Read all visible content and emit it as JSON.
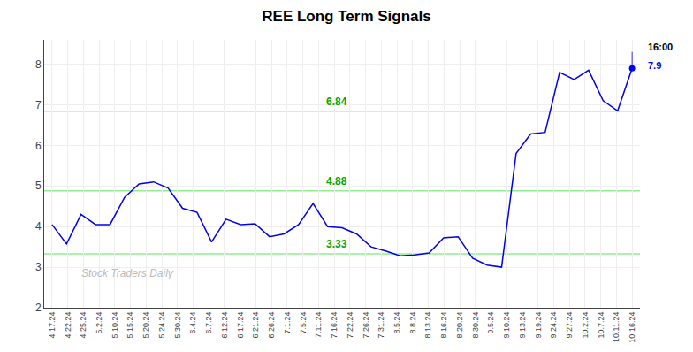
{
  "chart_data": {
    "type": "line",
    "title": "REE Long Term Signals",
    "x": [
      0,
      0.925,
      1.85,
      2.775,
      3.7,
      4.625,
      5.55,
      6.475,
      7.4,
      8.325,
      9.25,
      10.175,
      11.1,
      12.025,
      12.95,
      13.875,
      14.8,
      15.725,
      16.65,
      17.575,
      18.5,
      19.425,
      20.35,
      21.275,
      22.2,
      23.125,
      24.05,
      24.975,
      25.9,
      26.825,
      27.75,
      28.675,
      29.6,
      30.525,
      31.45,
      32.375,
      33.3,
      34.225,
      35.15,
      36.075,
      37
    ],
    "values": [
      4.05,
      3.57,
      4.3,
      4.05,
      4.05,
      4.72,
      5.05,
      5.1,
      4.95,
      4.45,
      4.35,
      3.62,
      4.18,
      4.05,
      4.07,
      3.75,
      3.82,
      4.05,
      4.57,
      4.0,
      3.97,
      3.82,
      3.5,
      3.4,
      3.28,
      3.3,
      3.35,
      3.72,
      3.75,
      3.22,
      3.05,
      3.0,
      5.8,
      6.28,
      6.32,
      7.8,
      7.62,
      7.85,
      7.1,
      6.85,
      7.9
    ],
    "color": "#0000EE",
    "xlim": [
      -0.5,
      37.5
    ],
    "xticks": [
      {
        "value": 0,
        "label": "4.17.24"
      },
      {
        "value": 1,
        "label": "4.22.24"
      },
      {
        "value": 2,
        "label": "4.25.24"
      },
      {
        "value": 3,
        "label": "5.2.24"
      },
      {
        "value": 4,
        "label": "5.10.24"
      },
      {
        "value": 5,
        "label": "5.15.24"
      },
      {
        "value": 6,
        "label": "5.20.24"
      },
      {
        "value": 7,
        "label": "5.24.24"
      },
      {
        "value": 8,
        "label": "5.30.24"
      },
      {
        "value": 9,
        "label": "6.4.24"
      },
      {
        "value": 10,
        "label": "6.7.24"
      },
      {
        "value": 11,
        "label": "6.12.24"
      },
      {
        "value": 12,
        "label": "6.17.24"
      },
      {
        "value": 13,
        "label": "6.21.24"
      },
      {
        "value": 14,
        "label": "6.26.24"
      },
      {
        "value": 15,
        "label": "7.1.24"
      },
      {
        "value": 16,
        "label": "7.5.24"
      },
      {
        "value": 17,
        "label": "7.11.24"
      },
      {
        "value": 18,
        "label": "7.16.24"
      },
      {
        "value": 19,
        "label": "7.22.24"
      },
      {
        "value": 20,
        "label": "7.26.24"
      },
      {
        "value": 21,
        "label": "7.31.24"
      },
      {
        "value": 22,
        "label": "8.5.24"
      },
      {
        "value": 23,
        "label": "8.8.24"
      },
      {
        "value": 24,
        "label": "8.13.24"
      },
      {
        "value": 25,
        "label": "8.16.24"
      },
      {
        "value": 26,
        "label": "8.20.24"
      },
      {
        "value": 27,
        "label": "8.30.24"
      },
      {
        "value": 28,
        "label": "9.5.24"
      },
      {
        "value": 29,
        "label": "9.10.24"
      },
      {
        "value": 30,
        "label": "9.13.24"
      },
      {
        "value": 31,
        "label": "9.19.24"
      },
      {
        "value": 32,
        "label": "9.24.24"
      },
      {
        "value": 33,
        "label": "9.27.24"
      },
      {
        "value": 34,
        "label": "10.2.24"
      },
      {
        "value": 35,
        "label": "10.7.24"
      },
      {
        "value": 36,
        "label": "10.11.24"
      },
      {
        "value": 37,
        "label": "10.16.24"
      }
    ],
    "ylim": [
      2,
      8.6
    ],
    "yticks": [
      2,
      3,
      4,
      5,
      6,
      7,
      8
    ],
    "grid": true,
    "annotations": [
      {
        "type": "hline",
        "y": 3.33,
        "text": "3.33",
        "color": "#90EE90",
        "text_color": "#00AA00"
      },
      {
        "type": "hline",
        "y": 4.88,
        "text": "4.88",
        "color": "#90EE90",
        "text_color": "#00AA00"
      },
      {
        "type": "hline",
        "y": 6.84,
        "text": "6.84",
        "color": "#90EE90",
        "text_color": "#00AA00"
      },
      {
        "type": "last_time",
        "text": "16:00"
      },
      {
        "type": "last_price",
        "y": 7.9,
        "color": "#0000EE"
      },
      {
        "type": "watermark",
        "text": "Stock Traders Daily"
      }
    ]
  }
}
